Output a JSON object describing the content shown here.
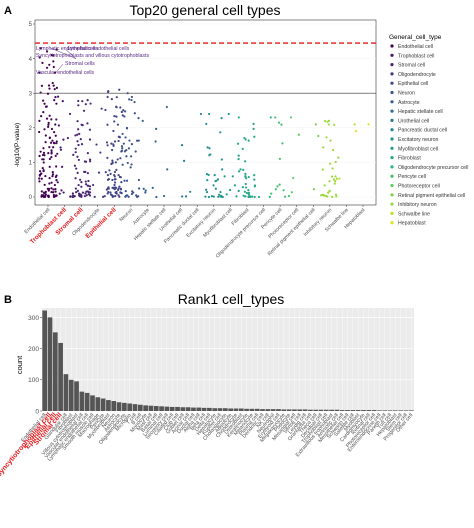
{
  "panelA": {
    "label": "A",
    "chart_data": {
      "type": "scatter",
      "title": "Top20 general cell types",
      "ylabel": "-log10(P-value)",
      "ylim": [
        0,
        5
      ],
      "yticks": [
        0,
        1,
        2,
        3,
        4,
        5
      ],
      "threshold_dashed": 4.45,
      "threshold_solid": 3.0,
      "legend_title": "General_cell_type",
      "categories": [
        "Endothelial cell",
        "Trophoblast cell",
        "Stromal cell",
        "Oligodendrocyte",
        "Epithelial cell",
        "Neuron",
        "Astrocyte",
        "Hepatic stellate cell",
        "Urothelial cell",
        "Pancreatic ductal cell",
        "Excitatory neuron",
        "Myofibroblast cell",
        "Fibroblast",
        "Oligodendrocyte precursor cell",
        "Pericyte cell",
        "Photoreceptor cell",
        "Retinal pigment epithelial cell",
        "Inhibitory neuron",
        "Schwalbe line",
        "Hepatoblast"
      ],
      "highlight_categories": [
        "Trophoblast cell",
        "Stromal cell",
        "Epithelial cell"
      ],
      "colors": [
        "#440154",
        "#471365",
        "#482475",
        "#463480",
        "#414487",
        "#3b528b",
        "#355f8d",
        "#2f6c8e",
        "#2a788e",
        "#25848e",
        "#21918c",
        "#1e9c89",
        "#22a884",
        "#2fb47c",
        "#44bf70",
        "#5ec962",
        "#7ad151",
        "#9bd93c",
        "#bddf26",
        "#dfe318"
      ],
      "point_counts": [
        130,
        20,
        70,
        12,
        90,
        45,
        8,
        3,
        4,
        3,
        30,
        10,
        40,
        3,
        12,
        4,
        3,
        35,
        2,
        2
      ],
      "max_values": [
        4.3,
        2.9,
        2.8,
        2.7,
        3.1,
        3.0,
        2.2,
        2.6,
        1.5,
        2.4,
        2.4,
        2.4,
        2.3,
        2.3,
        2.3,
        2.3,
        2.1,
        2.2,
        2.1,
        2.1
      ],
      "annotations": [
        {
          "text": "Lymphatic endothelial cells",
          "x_cat": 0,
          "y": 4.25
        },
        {
          "text": "Lymphatic endothelial cells",
          "x_cat": 1.9,
          "y": 4.25
        },
        {
          "text": "Syncytiotrophoblasts and villous cytotrophoblasts",
          "x_cat": 0,
          "y": 4.05
        },
        {
          "text": "Stromal cells",
          "x_cat": 1.75,
          "y": 3.82
        },
        {
          "text": "Vascular endothelial cells",
          "x_cat": 0,
          "y": 3.55
        }
      ]
    }
  },
  "panelB": {
    "label": "B",
    "chart_data": {
      "type": "bar",
      "title": "Rank1 cell_types",
      "ylabel": "count",
      "ylim": [
        0,
        330
      ],
      "yticks": [
        0,
        100,
        200,
        300
      ],
      "bar_color": "#555555",
      "categories": [
        "Endothelial cell",
        "Syncytiotrophoblast cell",
        "Epithelial cell",
        "Stromal cell",
        "Glandular cell",
        "Fibroblast",
        "Villous cytotrophoblast",
        "Vascular endothelial cell",
        "Lymphatic endothelial cell",
        "Smooth muscle cell",
        "Macrophage",
        "Pericyte",
        "Myofibroblast",
        "Neuron",
        "Astrocyte",
        "Oligodendrocyte",
        "Microglia",
        "T cell",
        "B cell",
        "Monocyte",
        "Mast cell",
        "Basal cell",
        "Luminal cell",
        "Secretory cell",
        "Ciliated cell",
        "Club cell",
        "Goblet cell",
        "Acinar cell",
        "Ductal cell",
        "Alpha cell",
        "Beta cell",
        "Delta cell",
        "Hepatocyte",
        "Kupffer cell",
        "Cholangiocyte",
        "Adipocyte",
        "Chondrocyte",
        "Osteoblast",
        "Keratinocyte",
        "Melanocyte",
        "Plasma cell",
        "Dendritic cell",
        "NK cell",
        "Neutrophil",
        "Erythroid cell",
        "Megakaryocyte",
        "Podocyte",
        "Mesangial cell",
        "Sertoli cell",
        "Leydig cell",
        "Granulosa cell",
        "Theca cell",
        "Decidual cell",
        "Trophoblast cell",
        "Extravillous trophoblast",
        "Amniotic cell",
        "Mesothelial cell",
        "Schwann cell",
        "Satellite cell",
        "Myoblast",
        "Cardiomyocyte",
        "Retinal cell",
        "Photoreceptor cell",
        "Enteroendocrine cell",
        "Paneth cell",
        "Tuft cell",
        "Hepatoblast",
        "Stem cell",
        "Progenitor cell",
        "Other cell"
      ],
      "highlight_categories": [
        "Syncytiotrophoblast cell",
        "Stromal cell",
        "Epithelial cell"
      ],
      "values": [
        322,
        300,
        252,
        218,
        118,
        100,
        95,
        62,
        58,
        50,
        44,
        40,
        35,
        32,
        28,
        26,
        24,
        22,
        20,
        18,
        17,
        16,
        15,
        14,
        13,
        13,
        12,
        12,
        11,
        11,
        10,
        10,
        9,
        9,
        9,
        8,
        8,
        8,
        7,
        7,
        7,
        6,
        6,
        6,
        6,
        5,
        5,
        5,
        5,
        5,
        4,
        4,
        4,
        4,
        4,
        4,
        3,
        3,
        3,
        3,
        3,
        3,
        3,
        2,
        2,
        2,
        2,
        2,
        2,
        2
      ]
    }
  }
}
